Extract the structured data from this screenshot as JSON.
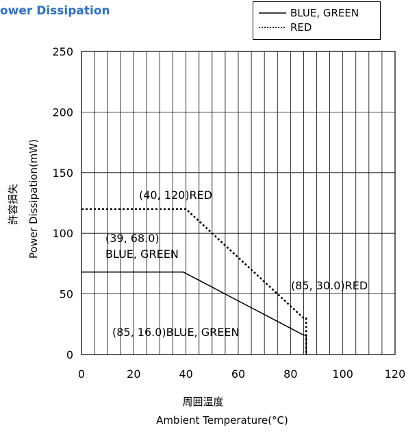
{
  "title": "ower Dissipation",
  "y_label_ja": "許容損失",
  "y_label": "Power Dissipation(mW)",
  "x_label_ja": "周囲温度",
  "x_label": "Ambient Temperature(°C)",
  "colors": {
    "title": "#2e6fc4",
    "line": "#000000"
  },
  "chart_data": {
    "type": "line",
    "x_ticks": [
      "0",
      "20",
      "40",
      "60",
      "80",
      "100",
      "120"
    ],
    "y_ticks": [
      "0",
      "50",
      "100",
      "150",
      "200",
      "250"
    ],
    "xlim": [
      0,
      120
    ],
    "ylim": [
      0,
      250
    ],
    "grid": "vertical lines every 5, horizontal lines every 50",
    "legend_position": "top-right",
    "series": [
      {
        "name": "BLUE, GREEN",
        "style": "solid",
        "points": [
          [
            0,
            68.0
          ],
          [
            39,
            68.0
          ],
          [
            85,
            16.0
          ],
          [
            86,
            16.0
          ],
          [
            86,
            0
          ]
        ]
      },
      {
        "name": "RED",
        "style": "dotted",
        "points": [
          [
            0,
            120
          ],
          [
            40,
            120
          ],
          [
            85,
            30.0
          ],
          [
            86,
            30.0
          ],
          [
            86,
            0
          ]
        ]
      }
    ],
    "annotations": [
      {
        "text": "(40, 120)RED",
        "x": 40,
        "y": 120
      },
      {
        "text": "(39, 68.0)",
        "x": 39,
        "y": 68.0
      },
      {
        "text": "BLUE, GREEN",
        "x": 39,
        "y": 68.0
      },
      {
        "text": "(85, 30.0)RED",
        "x": 85,
        "y": 30.0
      },
      {
        "text": "(85, 16.0)BLUE, GREEN",
        "x": 85,
        "y": 16.0
      }
    ]
  }
}
